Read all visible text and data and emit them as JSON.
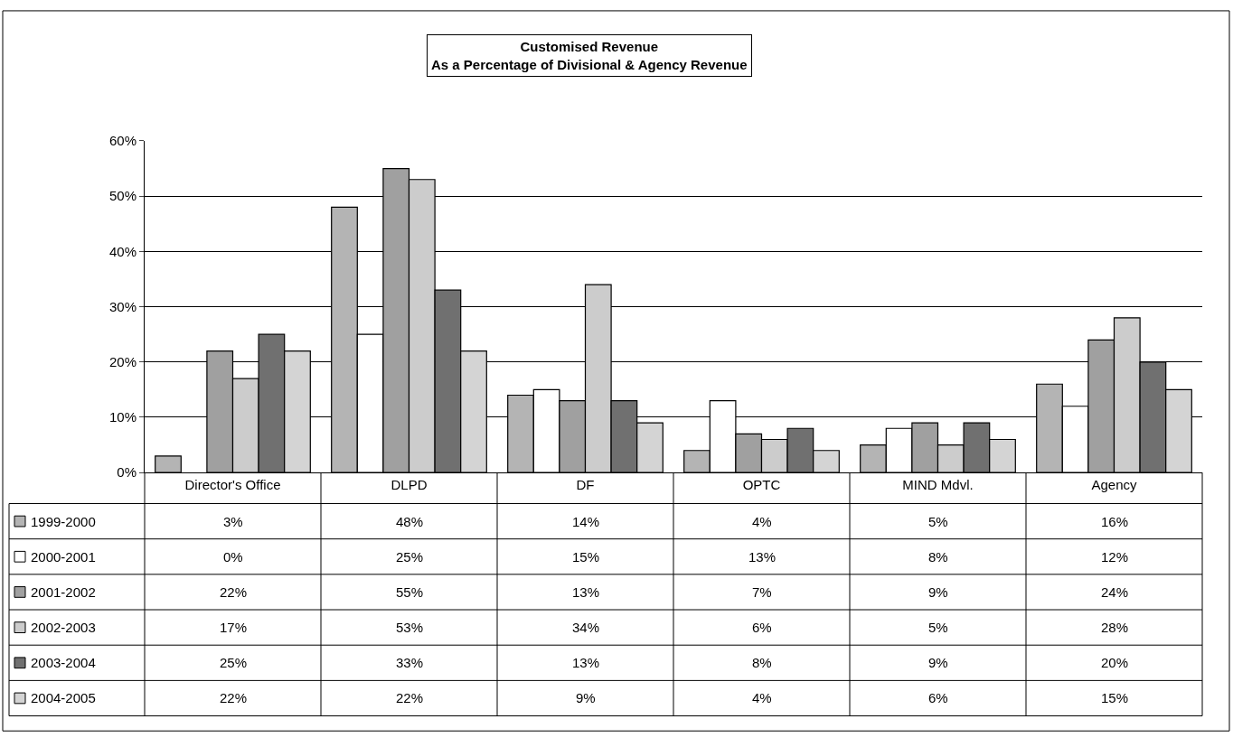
{
  "chart_data": {
    "type": "bar",
    "title": "Customised Revenue",
    "subtitle": "As a Percentage of Divisional & Agency Revenue",
    "categories": [
      "Director's Office",
      "DLPD",
      "DF",
      "OPTC",
      "MIND Mdvl.",
      "Agency"
    ],
    "ylim": [
      0,
      60
    ],
    "yticks": [
      {
        "value": 0,
        "label": "0%"
      },
      {
        "value": 10,
        "label": "10%"
      },
      {
        "value": 20,
        "label": "20%"
      },
      {
        "value": 30,
        "label": "30%"
      },
      {
        "value": 40,
        "label": "40%"
      },
      {
        "value": 50,
        "label": "50%"
      },
      {
        "value": 60,
        "label": "60%"
      }
    ],
    "grid": "y",
    "legend": "bottom left",
    "series": [
      {
        "name": "1999-2000",
        "color": "#b4b4b4",
        "values": [
          3,
          48,
          14,
          4,
          5,
          16
        ],
        "value_labels": [
          "3%",
          "48%",
          "14%",
          "4%",
          "5%",
          "16%"
        ]
      },
      {
        "name": "2000-2001",
        "color": "#ffffff",
        "values": [
          0,
          25,
          15,
          13,
          8,
          12
        ],
        "value_labels": [
          "0%",
          "25%",
          "15%",
          "13%",
          "8%",
          "12%"
        ]
      },
      {
        "name": "2001-2002",
        "color": "#a0a0a0",
        "values": [
          22,
          55,
          13,
          7,
          9,
          24
        ],
        "value_labels": [
          "22%",
          "55%",
          "13%",
          "7%",
          "9%",
          "24%"
        ]
      },
      {
        "name": "2002-2003",
        "color": "#cccccc",
        "values": [
          17,
          53,
          34,
          6,
          5,
          28
        ],
        "value_labels": [
          "17%",
          "53%",
          "34%",
          "6%",
          "5%",
          "28%"
        ]
      },
      {
        "name": "2003-2004",
        "color": "#707070",
        "values": [
          25,
          33,
          13,
          8,
          9,
          20
        ],
        "value_labels": [
          "25%",
          "33%",
          "13%",
          "8%",
          "9%",
          "20%"
        ]
      },
      {
        "name": "2004-2005",
        "color": "#d4d4d4",
        "values": [
          22,
          22,
          9,
          4,
          6,
          15
        ],
        "value_labels": [
          "22%",
          "22%",
          "9%",
          "4%",
          "6%",
          "15%"
        ]
      }
    ]
  }
}
